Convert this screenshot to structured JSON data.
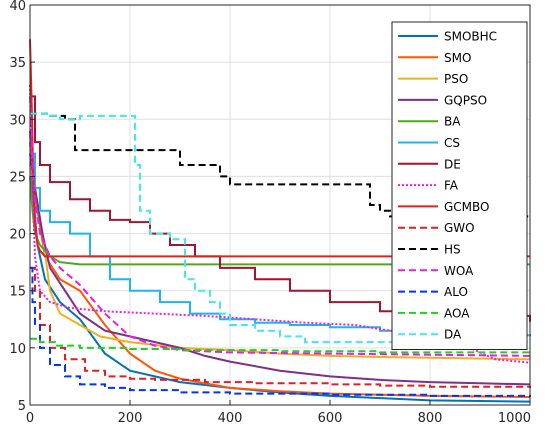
{
  "chart_data": {
    "type": "line",
    "title": "",
    "xlabel": "",
    "ylabel": "",
    "xlim": [
      0,
      1000
    ],
    "ylim": [
      5,
      40
    ],
    "xticks": [
      "0",
      "200",
      "400",
      "600",
      "800",
      "1000"
    ],
    "yticks": [
      "5",
      "10",
      "15",
      "20",
      "25",
      "30",
      "35",
      "40"
    ],
    "grid": true,
    "legend_position": "top-right",
    "series": [
      {
        "name": "SMOBHC",
        "color": "#0072BD",
        "dash": "solid",
        "step": false,
        "points": [
          [
            0,
            29
          ],
          [
            5,
            24
          ],
          [
            15,
            19
          ],
          [
            30,
            16
          ],
          [
            60,
            14
          ],
          [
            100,
            12.5
          ],
          [
            150,
            9.5
          ],
          [
            200,
            8
          ],
          [
            300,
            7
          ],
          [
            400,
            6.5
          ],
          [
            500,
            6.1
          ],
          [
            600,
            5.8
          ],
          [
            700,
            5.6
          ],
          [
            800,
            5.4
          ],
          [
            1000,
            5.3
          ]
        ]
      },
      {
        "name": "SMO",
        "color": "#FF5500",
        "dash": "solid",
        "step": false,
        "points": [
          [
            0,
            28
          ],
          [
            5,
            25
          ],
          [
            15,
            22
          ],
          [
            30,
            18
          ],
          [
            60,
            16
          ],
          [
            100,
            15
          ],
          [
            150,
            12
          ],
          [
            200,
            9.5
          ],
          [
            250,
            8
          ],
          [
            300,
            7.3
          ],
          [
            400,
            6.5
          ],
          [
            500,
            6.2
          ],
          [
            600,
            6
          ],
          [
            800,
            5.8
          ],
          [
            1000,
            5.7
          ]
        ]
      },
      {
        "name": "PSO",
        "color": "#EDB120",
        "dash": "solid",
        "step": false,
        "points": [
          [
            0,
            26
          ],
          [
            10,
            24
          ],
          [
            25,
            20
          ],
          [
            40,
            15
          ],
          [
            60,
            13
          ],
          [
            100,
            12
          ],
          [
            140,
            11
          ],
          [
            200,
            10.5
          ],
          [
            300,
            10
          ],
          [
            400,
            9.8
          ],
          [
            500,
            9.5
          ],
          [
            600,
            9.3
          ],
          [
            700,
            9.2
          ],
          [
            1000,
            9
          ]
        ]
      },
      {
        "name": "GQPSO",
        "color": "#7E2F8E",
        "dash": "solid",
        "step": false,
        "points": [
          [
            0,
            27
          ],
          [
            10,
            24
          ],
          [
            25,
            20
          ],
          [
            40,
            17
          ],
          [
            70,
            15
          ],
          [
            100,
            13
          ],
          [
            150,
            11.5
          ],
          [
            200,
            11
          ],
          [
            250,
            10.5
          ],
          [
            300,
            10
          ],
          [
            350,
            9.3
          ],
          [
            400,
            8.8
          ],
          [
            500,
            8
          ],
          [
            600,
            7.5
          ],
          [
            700,
            7.2
          ],
          [
            800,
            7
          ],
          [
            900,
            6.9
          ],
          [
            1000,
            6.8
          ]
        ]
      },
      {
        "name": "BA",
        "color": "#4DAA20",
        "dash": "solid",
        "step": false,
        "points": [
          [
            0,
            25
          ],
          [
            5,
            22
          ],
          [
            10,
            20
          ],
          [
            20,
            19
          ],
          [
            40,
            18
          ],
          [
            60,
            17.5
          ],
          [
            100,
            17.3
          ],
          [
            1000,
            17.3
          ]
        ]
      },
      {
        "name": "CS",
        "color": "#1EB4F0",
        "dash": "solid",
        "step": true,
        "points": [
          [
            0,
            27
          ],
          [
            10,
            24
          ],
          [
            20,
            22
          ],
          [
            40,
            21
          ],
          [
            80,
            20
          ],
          [
            120,
            18
          ],
          [
            160,
            16
          ],
          [
            200,
            15
          ],
          [
            260,
            14
          ],
          [
            320,
            13
          ],
          [
            380,
            12.5
          ],
          [
            450,
            12.2
          ],
          [
            520,
            12
          ],
          [
            600,
            11.8
          ],
          [
            700,
            11.5
          ],
          [
            800,
            11.3
          ],
          [
            900,
            11.1
          ],
          [
            1000,
            11
          ]
        ]
      },
      {
        "name": "DE",
        "color": "#A2142F",
        "dash": "solid",
        "step": true,
        "points": [
          [
            0,
            32
          ],
          [
            10,
            28
          ],
          [
            20,
            26
          ],
          [
            40,
            24.5
          ],
          [
            80,
            23
          ],
          [
            120,
            22
          ],
          [
            160,
            21.2
          ],
          [
            200,
            21
          ],
          [
            240,
            20
          ],
          [
            280,
            19
          ],
          [
            330,
            18
          ],
          [
            380,
            17
          ],
          [
            450,
            16
          ],
          [
            520,
            15
          ],
          [
            600,
            14
          ],
          [
            700,
            13.2
          ],
          [
            800,
            13
          ],
          [
            950,
            12.8
          ],
          [
            1000,
            12.3
          ]
        ]
      },
      {
        "name": "FA",
        "color": "#E61EE6",
        "dash": "dot",
        "step": false,
        "points": [
          [
            0,
            33
          ],
          [
            5,
            24
          ],
          [
            10,
            18
          ],
          [
            20,
            15
          ],
          [
            40,
            14
          ],
          [
            80,
            13.5
          ],
          [
            150,
            13.2
          ],
          [
            250,
            13
          ],
          [
            350,
            12.8
          ],
          [
            450,
            12.5
          ],
          [
            550,
            12.2
          ],
          [
            650,
            12
          ],
          [
            720,
            11.5
          ],
          [
            780,
            11.2
          ],
          [
            830,
            10.5
          ],
          [
            880,
            10
          ],
          [
            930,
            9
          ],
          [
            1000,
            8.7
          ]
        ]
      },
      {
        "name": "GCMBO",
        "color": "#E02020",
        "dash": "solid",
        "step": false,
        "points": [
          [
            0,
            37
          ],
          [
            3,
            32
          ],
          [
            6,
            26
          ],
          [
            10,
            21
          ],
          [
            15,
            19
          ],
          [
            20,
            18.5
          ],
          [
            30,
            18
          ],
          [
            1000,
            18
          ]
        ]
      },
      {
        "name": "GWO",
        "color": "#E02020",
        "dash": "dash",
        "step": true,
        "points": [
          [
            0,
            17
          ],
          [
            10,
            15
          ],
          [
            20,
            12
          ],
          [
            40,
            10
          ],
          [
            70,
            9
          ],
          [
            110,
            8
          ],
          [
            150,
            7.5
          ],
          [
            200,
            7.3
          ],
          [
            250,
            7.2
          ],
          [
            350,
            7
          ],
          [
            450,
            6.9
          ],
          [
            600,
            6.8
          ],
          [
            700,
            6.7
          ],
          [
            800,
            6.6
          ],
          [
            900,
            6.6
          ],
          [
            1000,
            6.5
          ]
        ]
      },
      {
        "name": "HS",
        "color": "#000000",
        "dash": "dash",
        "step": true,
        "points": [
          [
            0,
            30.5
          ],
          [
            40,
            30.3
          ],
          [
            70,
            30
          ],
          [
            90,
            27.3
          ],
          [
            200,
            27.3
          ],
          [
            300,
            26
          ],
          [
            380,
            25
          ],
          [
            400,
            24.3
          ],
          [
            660,
            24.3
          ],
          [
            680,
            22.5
          ],
          [
            700,
            22
          ],
          [
            720,
            21.5
          ],
          [
            1000,
            21.5
          ]
        ]
      },
      {
        "name": "WOA",
        "color": "#E61EE6",
        "dash": "dash",
        "step": false,
        "points": [
          [
            0,
            32
          ],
          [
            5,
            27
          ],
          [
            10,
            23
          ],
          [
            20,
            20
          ],
          [
            40,
            18
          ],
          [
            60,
            17
          ],
          [
            100,
            15.5
          ],
          [
            150,
            13
          ],
          [
            200,
            11
          ],
          [
            250,
            10.2
          ],
          [
            300,
            9.8
          ],
          [
            400,
            9.6
          ],
          [
            600,
            9.5
          ],
          [
            800,
            9.4
          ],
          [
            1000,
            9.3
          ]
        ]
      },
      {
        "name": "ALO",
        "color": "#0033FF",
        "dash": "dash",
        "step": true,
        "points": [
          [
            0,
            17
          ],
          [
            5,
            14
          ],
          [
            10,
            12
          ],
          [
            20,
            10
          ],
          [
            40,
            8.5
          ],
          [
            70,
            7.5
          ],
          [
            100,
            6.8
          ],
          [
            150,
            6.5
          ],
          [
            200,
            6.3
          ],
          [
            300,
            6.1
          ],
          [
            400,
            6
          ],
          [
            600,
            5.9
          ],
          [
            800,
            5.8
          ],
          [
            1000,
            5.7
          ]
        ]
      },
      {
        "name": "AOA",
        "color": "#20D020",
        "dash": "dash",
        "step": true,
        "points": [
          [
            0,
            10.8
          ],
          [
            20,
            10.5
          ],
          [
            50,
            10.2
          ],
          [
            100,
            10
          ],
          [
            200,
            9.9
          ],
          [
            300,
            9.8
          ],
          [
            500,
            9.7
          ],
          [
            700,
            9.6
          ],
          [
            1000,
            9.5
          ]
        ]
      },
      {
        "name": "DA",
        "color": "#3EEAEA",
        "dash": "dash",
        "step": true,
        "points": [
          [
            0,
            30.5
          ],
          [
            40,
            30.3
          ],
          [
            60,
            30
          ],
          [
            100,
            30.3
          ],
          [
            200,
            30.3
          ],
          [
            210,
            26
          ],
          [
            220,
            22
          ],
          [
            240,
            20
          ],
          [
            280,
            19.5
          ],
          [
            310,
            16
          ],
          [
            330,
            15
          ],
          [
            360,
            14
          ],
          [
            380,
            13
          ],
          [
            400,
            12
          ],
          [
            450,
            11.5
          ],
          [
            500,
            11
          ],
          [
            550,
            10.5
          ],
          [
            700,
            10.5
          ],
          [
            1000,
            10.5
          ]
        ]
      }
    ]
  }
}
